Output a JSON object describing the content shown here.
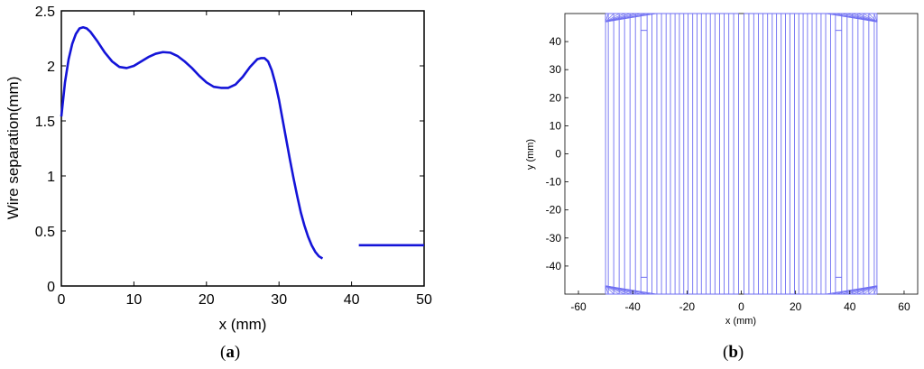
{
  "panels": {
    "a": {
      "label_open": "(",
      "label_letter": "a",
      "label_close": ")"
    },
    "b": {
      "label_open": "(",
      "label_letter": "b",
      "label_close": ")"
    }
  },
  "chart_data": [
    {
      "type": "line",
      "xlabel": "x (mm)",
      "ylabel": "Wire separation(mm)",
      "xlim": [
        0,
        50
      ],
      "ylim": [
        0,
        2.5
      ],
      "xticks": [
        0,
        10,
        20,
        30,
        40,
        50
      ],
      "yticks": [
        0,
        0.5,
        1,
        1.5,
        2,
        2.5
      ],
      "xtick_labels": [
        "0",
        "10",
        "20",
        "30",
        "40",
        "50"
      ],
      "ytick_labels": [
        "0",
        "0.5",
        "1",
        "1.5",
        "2",
        "2.5"
      ],
      "grid": false,
      "color": "#1414d8",
      "series": [
        {
          "x": [
            0,
            0.5,
            1,
            1.5,
            2,
            2.5,
            3,
            3.5,
            4,
            5,
            6,
            7,
            8,
            9,
            10,
            11,
            12,
            13,
            14,
            15,
            16,
            17,
            18,
            19,
            20,
            21,
            22,
            23,
            24,
            25,
            26,
            27,
            27.5,
            28,
            28.5,
            29,
            29.5,
            30,
            30.5,
            31,
            31.5,
            32,
            32.5,
            33,
            33.5,
            34,
            34.5,
            35,
            35.5,
            36
          ],
          "y": [
            1.54,
            1.85,
            2.06,
            2.2,
            2.29,
            2.34,
            2.35,
            2.34,
            2.31,
            2.22,
            2.12,
            2.04,
            1.99,
            1.98,
            2.0,
            2.04,
            2.08,
            2.11,
            2.125,
            2.12,
            2.09,
            2.04,
            1.98,
            1.91,
            1.85,
            1.81,
            1.8,
            1.8,
            1.83,
            1.9,
            1.99,
            2.06,
            2.07,
            2.07,
            2.04,
            1.96,
            1.84,
            1.69,
            1.51,
            1.33,
            1.15,
            0.98,
            0.82,
            0.67,
            0.55,
            0.45,
            0.37,
            0.31,
            0.27,
            0.25
          ]
        },
        {
          "x": [
            41,
            50
          ],
          "y": [
            0.37,
            0.37
          ]
        }
      ]
    },
    {
      "type": "line",
      "xlabel": "x (mm)",
      "ylabel": "y (mm)",
      "xlim": [
        -65,
        65
      ],
      "ylim": [
        -50,
        50
      ],
      "xticks": [
        -60,
        -40,
        -20,
        0,
        20,
        40,
        60
      ],
      "yticks": [
        -40,
        -30,
        -20,
        -10,
        0,
        10,
        20,
        30,
        40
      ],
      "xtick_labels": [
        "-60",
        "-40",
        "-20",
        "0",
        "20",
        "40",
        "60"
      ],
      "ytick_labels": [
        "-40",
        "-30",
        "-20",
        "-10",
        "0",
        "10",
        "20",
        "30",
        "40"
      ],
      "grid": false,
      "color": "#6e6ef2",
      "wire_x_positions": [
        1.0,
        2.8,
        4.6,
        6.3,
        8.0,
        9.7,
        11.4,
        13.0,
        14.7,
        16.3,
        17.9,
        19.6,
        21.2,
        22.8,
        24.4,
        26.1,
        27.7,
        29.4,
        31.1,
        32.9,
        34.7,
        37.0,
        39.0,
        41.0,
        43.0,
        45.0,
        47.0,
        49.0,
        50.0
      ],
      "wire_end_y": 50,
      "inner_wire_end_y": 44
    }
  ]
}
